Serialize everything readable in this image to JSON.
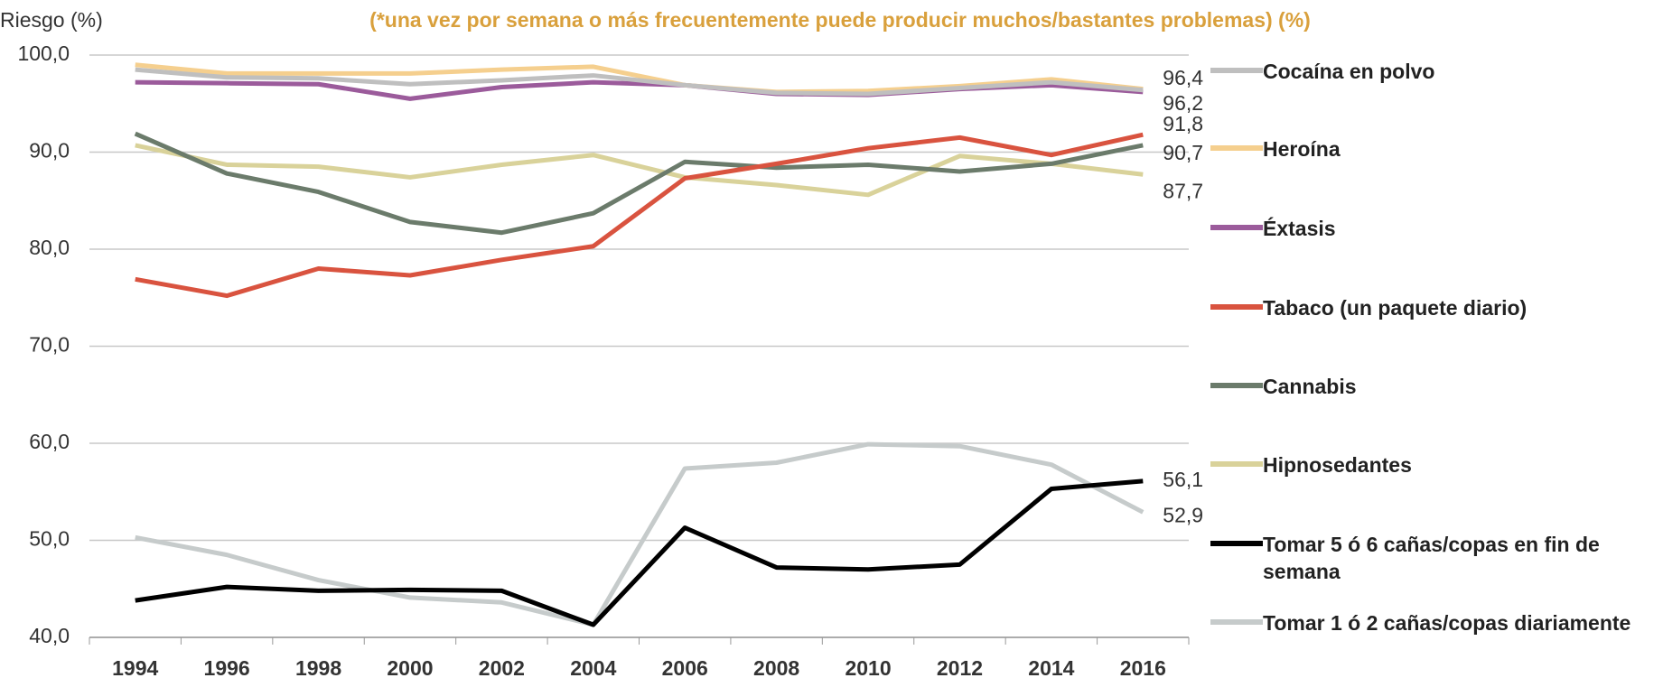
{
  "chart_data": {
    "type": "line",
    "y_label": "Riesgo (%)",
    "subtitle": "(*una vez por semana o más frecuentemente puede producir muchos/bastantes problemas) (%)",
    "categories": [
      "1994",
      "1996",
      "1998",
      "2000",
      "2002",
      "2004",
      "2006",
      "2008",
      "2010",
      "2012",
      "2014",
      "2016"
    ],
    "ylim": [
      40,
      100
    ],
    "yticks": [
      {
        "value": 40,
        "label": "40,0"
      },
      {
        "value": 50,
        "label": "50,0"
      },
      {
        "value": 60,
        "label": "60,0"
      },
      {
        "value": 70,
        "label": "70,0"
      },
      {
        "value": 80,
        "label": "80,0"
      },
      {
        "value": 90,
        "label": "90,0"
      },
      {
        "value": 100,
        "label": "100,0"
      }
    ],
    "grid": true,
    "series": [
      {
        "name": "Cocaína en polvo",
        "color": "#bfbfbf",
        "values": [
          98.5,
          97.7,
          97.6,
          97.0,
          97.4,
          97.9,
          96.9,
          96.1,
          96.0,
          96.6,
          97.2,
          96.4
        ],
        "value_labels": [
          null,
          null,
          null,
          null,
          null,
          null,
          null,
          null,
          null,
          null,
          null,
          "96,4"
        ]
      },
      {
        "name": "Heroína",
        "color": "#f5cf8e",
        "values": [
          99.0,
          98.1,
          98.1,
          98.1,
          98.5,
          98.8,
          96.9,
          96.2,
          96.3,
          96.8,
          97.5,
          96.5
        ]
      },
      {
        "name": "Éxtasis",
        "color": "#9b5b9b",
        "values": [
          97.2,
          97.1,
          97.0,
          95.5,
          96.7,
          97.2,
          96.9,
          96.0,
          95.9,
          96.5,
          96.9,
          96.2
        ],
        "value_labels": [
          null,
          null,
          null,
          null,
          null,
          null,
          null,
          null,
          null,
          null,
          null,
          "96,2"
        ]
      },
      {
        "name": "Tabaco (un paquete diario)",
        "color": "#d9533f",
        "values": [
          76.9,
          75.2,
          78.0,
          77.3,
          78.9,
          80.3,
          87.3,
          88.8,
          90.4,
          91.5,
          89.7,
          91.8
        ],
        "value_labels": [
          null,
          null,
          null,
          null,
          null,
          null,
          null,
          null,
          null,
          null,
          null,
          "91,8"
        ]
      },
      {
        "name": "Cannabis",
        "color": "#6b7b6b",
        "values": [
          91.9,
          87.8,
          85.9,
          82.8,
          81.7,
          83.7,
          89.0,
          88.4,
          88.7,
          88.0,
          88.8,
          90.7
        ],
        "value_labels": [
          null,
          null,
          null,
          null,
          null,
          null,
          null,
          null,
          null,
          null,
          null,
          "90,7"
        ]
      },
      {
        "name": "Hipnosedantes",
        "color": "#d9d29a",
        "values": [
          90.7,
          88.7,
          88.5,
          87.4,
          88.7,
          89.7,
          87.4,
          86.6,
          85.6,
          89.6,
          88.8,
          87.7
        ],
        "value_labels": [
          null,
          null,
          null,
          null,
          null,
          null,
          null,
          null,
          null,
          null,
          null,
          "87,7"
        ]
      },
      {
        "name": "Tomar 5 ó 6 cañas/copas en fin de semana",
        "color": "#000000",
        "values": [
          43.8,
          45.2,
          44.8,
          44.9,
          44.8,
          41.3,
          51.3,
          47.2,
          47.0,
          47.5,
          55.3,
          56.1
        ],
        "value_labels": [
          null,
          null,
          null,
          null,
          null,
          null,
          null,
          null,
          null,
          null,
          null,
          "56,1"
        ]
      },
      {
        "name": "Tomar 1 ó 2 cañas/copas diariamente",
        "color": "#c6cbcb",
        "values": [
          50.3,
          48.5,
          45.9,
          44.1,
          43.6,
          41.3,
          57.4,
          58.0,
          59.9,
          59.7,
          57.8,
          52.9
        ],
        "value_labels": [
          null,
          null,
          null,
          null,
          null,
          null,
          null,
          null,
          null,
          null,
          null,
          "52,9"
        ]
      }
    ]
  }
}
